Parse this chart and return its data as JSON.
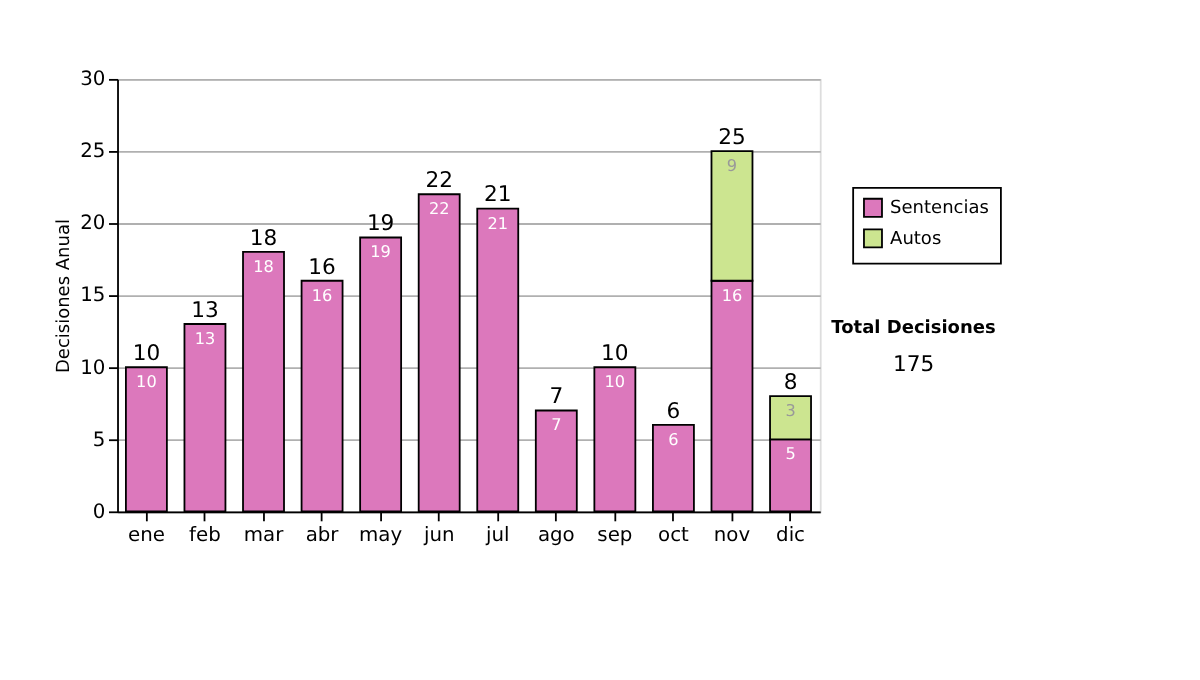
{
  "chart_data": {
    "type": "bar",
    "ylabel": "Decisiones Anual",
    "categories": [
      "ene",
      "feb",
      "mar",
      "abr",
      "may",
      "jun",
      "jul",
      "ago",
      "sep",
      "oct",
      "nov",
      "dic"
    ],
    "series": [
      {
        "name": "Sentencias",
        "color": "#dc78bc",
        "values": [
          10,
          13,
          18,
          16,
          19,
          22,
          21,
          7,
          10,
          6,
          16,
          5
        ]
      },
      {
        "name": "Autos",
        "color": "#cce590",
        "values": [
          null,
          null,
          null,
          null,
          null,
          null,
          null,
          null,
          null,
          null,
          9,
          3
        ]
      }
    ],
    "stacked": true,
    "data_labels": true,
    "totals": [
      "10",
      "13",
      "18",
      "16",
      "19",
      "22",
      "21",
      "7",
      "10",
      "6",
      "25",
      "8"
    ],
    "ylim": [
      0,
      30
    ],
    "yticks": [
      0,
      5,
      10,
      15,
      20,
      25,
      30
    ],
    "grid": "y",
    "legend": "right",
    "annotations": [
      "Total Decisiones",
      "175"
    ]
  }
}
